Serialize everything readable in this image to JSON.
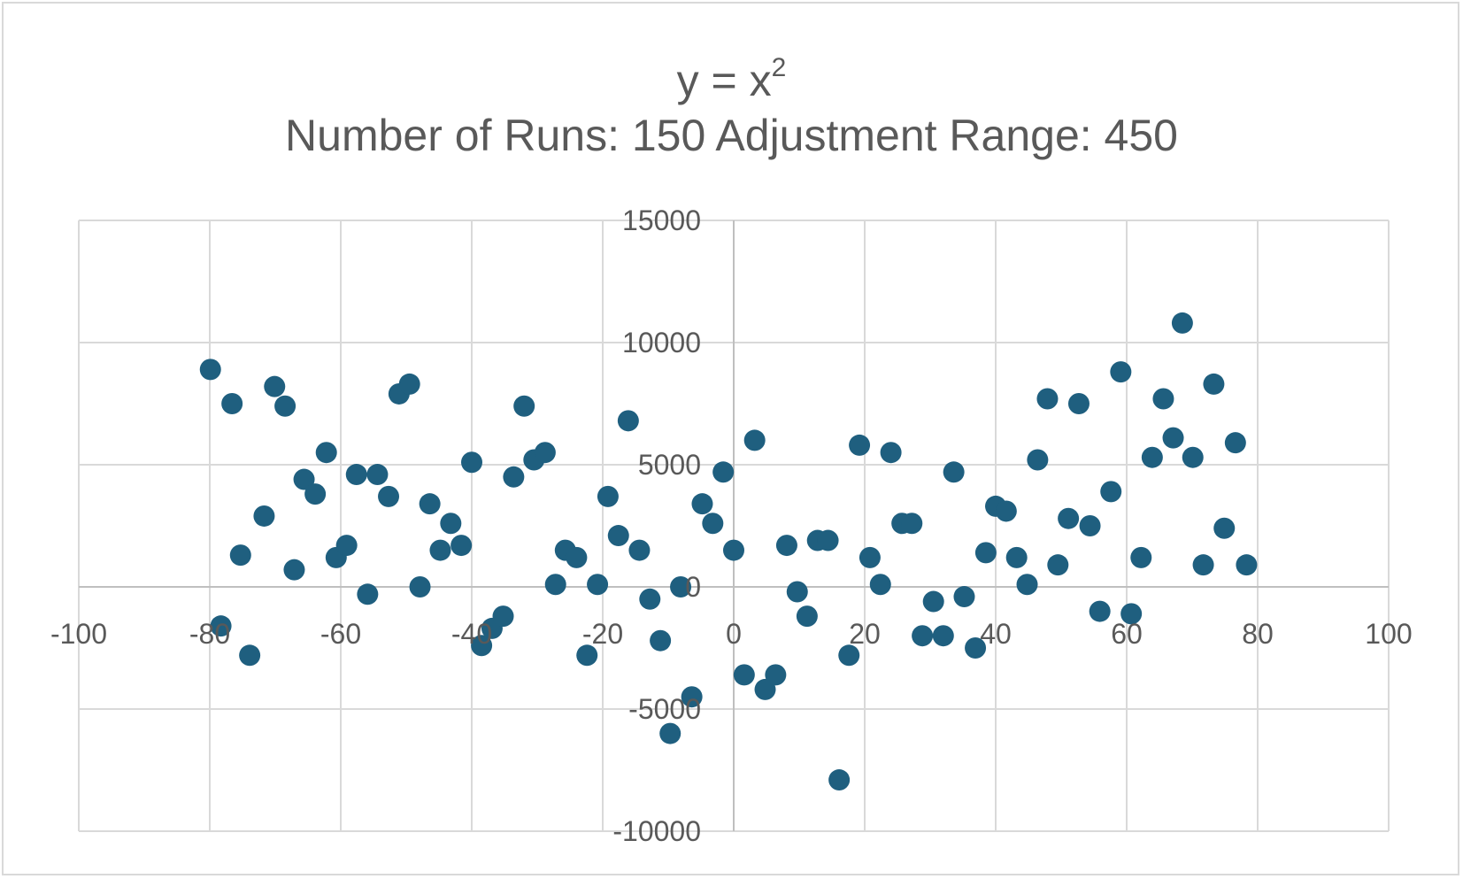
{
  "chart_data": {
    "type": "scatter",
    "title": "y = x",
    "title_superscript": "2",
    "subtitle": "Number of Runs: 150 Adjustment Range: 450",
    "xlabel": "",
    "ylabel": "",
    "xlim": [
      -100,
      100
    ],
    "ylim": [
      -10000,
      15000
    ],
    "x_ticks": [
      -100,
      -80,
      -60,
      -40,
      -20,
      0,
      20,
      40,
      60,
      80,
      100
    ],
    "y_ticks": [
      -10000,
      -5000,
      0,
      5000,
      10000,
      15000
    ],
    "x_tick_labels": [
      "-100",
      "-80",
      "-60",
      "-40",
      "-20",
      "0",
      "20",
      "40",
      "60",
      "80",
      "100"
    ],
    "y_tick_labels": [
      "-10000",
      "-5000",
      "0",
      "5000",
      "10000",
      "15000"
    ],
    "grid": true,
    "legend": "none",
    "marker_color": "#1f5f7f",
    "points": [
      [
        -79.9,
        8900
      ],
      [
        -78.3,
        -1600
      ],
      [
        -76.6,
        7500
      ],
      [
        -75.3,
        1300
      ],
      [
        -73.9,
        -2800
      ],
      [
        -71.7,
        2900
      ],
      [
        -70.1,
        8200
      ],
      [
        -68.5,
        7400
      ],
      [
        -67.1,
        700
      ],
      [
        -65.6,
        4400
      ],
      [
        -63.9,
        3800
      ],
      [
        -62.2,
        5500
      ],
      [
        -60.7,
        1200
      ],
      [
        -59.1,
        1700
      ],
      [
        -57.6,
        4600
      ],
      [
        -55.9,
        -300
      ],
      [
        -54.4,
        4600
      ],
      [
        -52.7,
        3700
      ],
      [
        -51.1,
        7900
      ],
      [
        -49.5,
        8300
      ],
      [
        -47.9,
        0
      ],
      [
        -46.4,
        3400
      ],
      [
        -44.8,
        1500
      ],
      [
        -43.2,
        2600
      ],
      [
        -41.6,
        1700
      ],
      [
        -40.0,
        5100
      ],
      [
        -38.5,
        -2400
      ],
      [
        -36.9,
        -1700
      ],
      [
        -35.2,
        -1200
      ],
      [
        -33.6,
        4500
      ],
      [
        -32.0,
        7400
      ],
      [
        -30.5,
        5200
      ],
      [
        -28.8,
        5500
      ],
      [
        -27.2,
        100
      ],
      [
        -25.7,
        1500
      ],
      [
        -24.0,
        1200
      ],
      [
        -22.4,
        -2800
      ],
      [
        -20.8,
        100
      ],
      [
        -19.2,
        3700
      ],
      [
        -17.6,
        2100
      ],
      [
        -16.1,
        6800
      ],
      [
        -14.4,
        1500
      ],
      [
        -12.8,
        -500
      ],
      [
        -11.2,
        -2200
      ],
      [
        -9.7,
        -6000
      ],
      [
        -8.1,
        0
      ],
      [
        -6.4,
        -4500
      ],
      [
        -4.8,
        3400
      ],
      [
        -3.2,
        2600
      ],
      [
        -1.6,
        4700
      ],
      [
        0.0,
        1500
      ],
      [
        1.6,
        -3600
      ],
      [
        3.2,
        6000
      ],
      [
        4.8,
        -4200
      ],
      [
        6.4,
        -3600
      ],
      [
        8.1,
        1700
      ],
      [
        9.7,
        -200
      ],
      [
        11.2,
        -1200
      ],
      [
        12.8,
        1900
      ],
      [
        14.4,
        1900
      ],
      [
        16.1,
        -7900
      ],
      [
        17.6,
        -2800
      ],
      [
        19.2,
        5800
      ],
      [
        20.8,
        1200
      ],
      [
        22.4,
        100
      ],
      [
        24.0,
        5500
      ],
      [
        25.7,
        2600
      ],
      [
        27.2,
        2600
      ],
      [
        28.8,
        -2000
      ],
      [
        30.5,
        -600
      ],
      [
        32.0,
        -2000
      ],
      [
        33.6,
        4700
      ],
      [
        35.2,
        -400
      ],
      [
        36.9,
        -2500
      ],
      [
        38.5,
        1400
      ],
      [
        40.0,
        3300
      ],
      [
        41.6,
        3100
      ],
      [
        43.2,
        1200
      ],
      [
        44.8,
        100
      ],
      [
        46.4,
        5200
      ],
      [
        47.9,
        7700
      ],
      [
        49.5,
        900
      ],
      [
        51.1,
        2800
      ],
      [
        52.7,
        7500
      ],
      [
        54.4,
        2500
      ],
      [
        55.9,
        -1000
      ],
      [
        57.6,
        3900
      ],
      [
        59.1,
        8800
      ],
      [
        60.7,
        -1100
      ],
      [
        62.2,
        1200
      ],
      [
        63.9,
        5300
      ],
      [
        65.6,
        7700
      ],
      [
        67.1,
        6100
      ],
      [
        68.5,
        10800
      ],
      [
        70.1,
        5300
      ],
      [
        71.7,
        900
      ],
      [
        73.3,
        8300
      ],
      [
        74.9,
        2400
      ],
      [
        76.6,
        5900
      ],
      [
        78.3,
        900
      ]
    ]
  }
}
